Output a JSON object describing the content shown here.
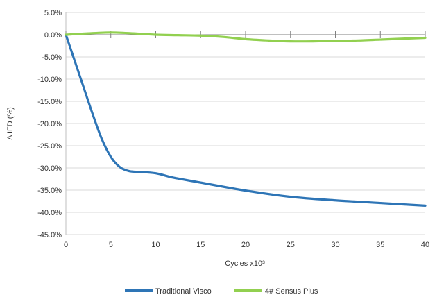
{
  "chart_data": {
    "type": "line",
    "title": "",
    "xlabel": "Cycles x10³",
    "ylabel": "Δ IFD (%)",
    "xlim": [
      0,
      40
    ],
    "ylim": [
      -45,
      5
    ],
    "x_ticks": [
      "0",
      "5",
      "10",
      "15",
      "20",
      "25",
      "30",
      "35",
      "40"
    ],
    "y_ticks": [
      "5.0%",
      "0.0%",
      "-5.0%",
      "-10.0%",
      "-15.0%",
      "-20.0%",
      "-25.0%",
      "-30.0%",
      "-35.0%",
      "-40.0%",
      "-45.0%"
    ],
    "grid": "horizontal",
    "legend_position": "bottom",
    "series": [
      {
        "name": "Traditional Visco",
        "color": "#2E75B6",
        "points": [
          [
            0,
            0
          ],
          [
            1,
            -6
          ],
          [
            2,
            -12
          ],
          [
            3,
            -18
          ],
          [
            4,
            -23.5
          ],
          [
            5,
            -27.5
          ],
          [
            6,
            -29.8
          ],
          [
            7,
            -30.7
          ],
          [
            8,
            -30.9
          ],
          [
            10,
            -31.2
          ],
          [
            12,
            -32.2
          ],
          [
            15,
            -33.3
          ],
          [
            20,
            -35.1
          ],
          [
            25,
            -36.5
          ],
          [
            30,
            -37.3
          ],
          [
            35,
            -37.9
          ],
          [
            40,
            -38.5
          ]
        ]
      },
      {
        "name": "4# Sensus Plus",
        "color": "#92D050",
        "points": [
          [
            0,
            0
          ],
          [
            2.5,
            0.3
          ],
          [
            5,
            0.5
          ],
          [
            7.5,
            0.3
          ],
          [
            10,
            0
          ],
          [
            12.5,
            -0.1
          ],
          [
            15,
            -0.2
          ],
          [
            17.5,
            -0.5
          ],
          [
            20,
            -1
          ],
          [
            22.5,
            -1.3
          ],
          [
            25,
            -1.5
          ],
          [
            27.5,
            -1.5
          ],
          [
            30,
            -1.4
          ],
          [
            32.5,
            -1.3
          ],
          [
            35,
            -1.1
          ],
          [
            37.5,
            -0.9
          ],
          [
            40,
            -0.7
          ]
        ]
      }
    ]
  }
}
